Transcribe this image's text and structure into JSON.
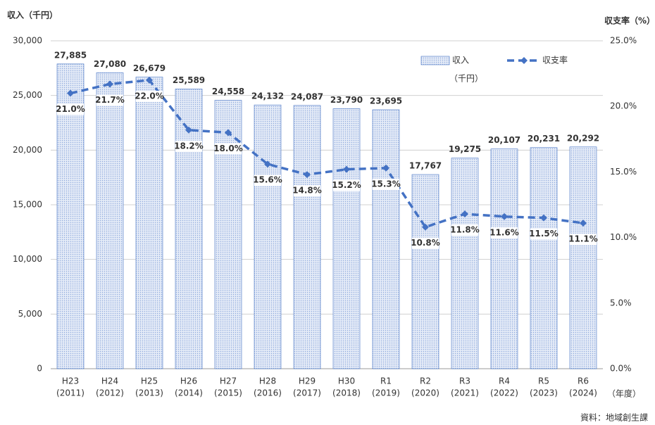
{
  "chart_data": {
    "type": "bar_line",
    "y_label": "収入（千円）",
    "y2_label": "収支率（%）",
    "x_label": "（年度）",
    "source": "資料：地域創生課",
    "categories": [
      [
        "H23",
        "(2011)"
      ],
      [
        "H24",
        "(2012)"
      ],
      [
        "H25",
        "(2013)"
      ],
      [
        "H26",
        "(2014)"
      ],
      [
        "H27",
        "(2015)"
      ],
      [
        "H28",
        "(2016)"
      ],
      [
        "H29",
        "(2017)"
      ],
      [
        "H30",
        "(2018)"
      ],
      [
        "R1",
        "(2019)"
      ],
      [
        "R2",
        "(2020)"
      ],
      [
        "R3",
        "(2021)"
      ],
      [
        "R4",
        "(2022)"
      ],
      [
        "R5",
        "(2023)"
      ],
      [
        "R6",
        "(2024)"
      ]
    ],
    "series": [
      {
        "name": "収入",
        "legend_unit": "（千円）",
        "type": "bar",
        "color": "#4472c4",
        "values": [
          27885,
          27080,
          26679,
          25589,
          24558,
          24132,
          24087,
          23790,
          23695,
          17767,
          19275,
          20107,
          20231,
          20292
        ],
        "value_labels": [
          "27,885",
          "27,080",
          "26,679",
          "25,589",
          "24,558",
          "24,132",
          "24,087",
          "23,790",
          "23,695",
          "17,767",
          "19,275",
          "20,107",
          "20,231",
          "20,292"
        ]
      },
      {
        "name": "収支率",
        "type": "line",
        "axis": "y2",
        "color": "#4472c4",
        "values": [
          21.0,
          21.7,
          22.0,
          18.2,
          18.0,
          15.6,
          14.8,
          15.2,
          15.3,
          10.8,
          11.8,
          11.6,
          11.5,
          11.1
        ],
        "value_labels": [
          "21.0%",
          "21.7%",
          "22.0%",
          "18.2%",
          "18.0%",
          "15.6%",
          "14.8%",
          "15.2%",
          "15.3%",
          "10.8%",
          "11.8%",
          "11.6%",
          "11.5%",
          "11.1%"
        ]
      }
    ],
    "ylim": [
      0,
      30000
    ],
    "yticks": [
      0,
      {
        "value": 5000,
        "label": "5,000"
      },
      {
        "value": 10000,
        "label": "10,000"
      },
      {
        "value": 15000,
        "label": "15,000"
      },
      {
        "value": 20000,
        "label": "20,000"
      },
      {
        "value": 25000,
        "label": "25,000"
      },
      {
        "value": 30000,
        "label": "30,000"
      }
    ],
    "y2lim": [
      0,
      25
    ],
    "y2ticks": [
      {
        "value": 0,
        "label": "0.0%"
      },
      {
        "value": 5,
        "label": "5.0%"
      },
      {
        "value": 10,
        "label": "10.0%"
      },
      {
        "value": 15,
        "label": "15.0%"
      },
      {
        "value": 20,
        "label": "20.0%"
      },
      {
        "value": 25,
        "label": "25.0%"
      }
    ],
    "grid": true
  }
}
